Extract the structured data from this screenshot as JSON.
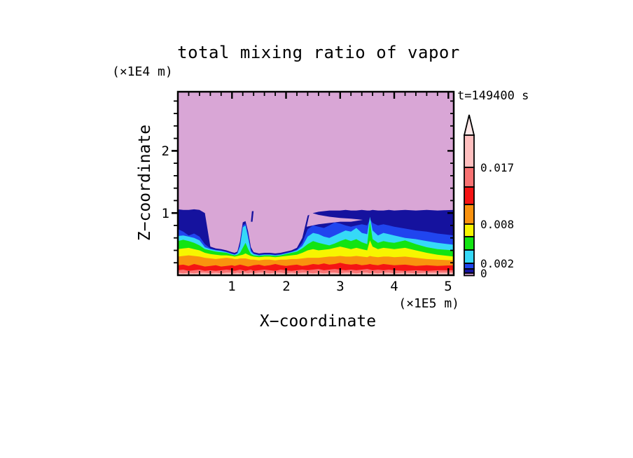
{
  "chart_data": {
    "type": "heatmap",
    "subtype": "filled-contour",
    "title": "total mixing ratio of vapor",
    "timestamp": "t=149400 s",
    "x_axis": {
      "label": "X−coordinate",
      "unit": "(×1E5 m)",
      "ticks": [
        "1",
        "2",
        "3",
        "4",
        "5"
      ],
      "tick_values": [
        1,
        2,
        3,
        4,
        5
      ],
      "minor_tick_step": 0.2,
      "range": [
        0,
        5.1
      ]
    },
    "z_axis": {
      "label": "Z−coordinate",
      "unit": "(×1E4 m)",
      "ticks": [
        "2",
        "1"
      ],
      "tick_values": [
        2,
        1
      ],
      "minor_tick_step": 0.2,
      "range": [
        0,
        2.95
      ]
    },
    "palette": {
      "lavender": "#D9A6D6",
      "navy": "#15129E",
      "blue": "#2045EF",
      "cyan": "#36D9F7",
      "green": "#12E412",
      "yellow": "#F7F500",
      "orange": "#F9920E",
      "red": "#F51414",
      "salmon": "#F87272",
      "lightpink": "#FFBFBF",
      "arrow": "#FFE9E9",
      "frame": "#000000"
    },
    "colorbar": {
      "labels": [
        "0.017",
        "0.008",
        "0.002",
        "0"
      ],
      "contour_levels_labeled": [
        0.017,
        0.008,
        0.002,
        0
      ],
      "segment_colors": [
        "lightpink",
        "salmon",
        "red",
        "orange",
        "yellow",
        "green",
        "cyan",
        "blue",
        "navy",
        "lavender"
      ],
      "segment_heights": [
        46,
        28,
        25,
        28,
        18,
        19,
        19,
        8,
        6,
        3.5
      ],
      "has_over_arrow": true
    },
    "background_band": "lavender",
    "x": [
      0,
      0.1,
      0.2,
      0.3,
      0.4,
      0.5,
      0.6,
      0.7,
      0.8,
      0.9,
      1.0,
      1.05,
      1.1,
      1.15,
      1.2,
      1.25,
      1.3,
      1.35,
      1.4,
      1.5,
      1.6,
      1.7,
      1.8,
      1.9,
      2.0,
      2.1,
      2.2,
      2.3,
      2.4,
      2.5,
      2.6,
      2.7,
      2.8,
      2.9,
      3.0,
      3.1,
      3.2,
      3.3,
      3.4,
      3.5,
      3.55,
      3.6,
      3.7,
      3.8,
      3.9,
      4.0,
      4.2,
      4.4,
      4.6,
      4.8,
      5.1
    ],
    "bands": [
      {
        "name": "navy",
        "color": "navy",
        "top": [
          1.06,
          1.05,
          1.05,
          1.06,
          1.05,
          1.0,
          0.46,
          0.43,
          0.42,
          0.4,
          0.37,
          0.36,
          0.38,
          0.55,
          0.85,
          0.87,
          0.7,
          0.45,
          0.37,
          0.35,
          0.36,
          0.36,
          0.35,
          0.36,
          0.38,
          0.4,
          0.44,
          0.6,
          0.96,
          1.0,
          1.02,
          1.03,
          1.04,
          1.04,
          1.04,
          1.05,
          1.04,
          1.04,
          1.05,
          1.04,
          1.04,
          1.05,
          1.04,
          1.04,
          1.05,
          1.04,
          1.05,
          1.04,
          1.05,
          1.04,
          1.05
        ]
      },
      {
        "name": "blue",
        "color": "blue",
        "top": [
          0.74,
          0.7,
          0.64,
          0.67,
          0.62,
          0.5,
          0.43,
          0.41,
          0.4,
          0.38,
          0.35,
          0.34,
          0.36,
          0.5,
          0.8,
          0.83,
          0.65,
          0.41,
          0.35,
          0.33,
          0.34,
          0.34,
          0.33,
          0.34,
          0.36,
          0.38,
          0.41,
          0.52,
          0.74,
          0.8,
          0.78,
          0.76,
          0.8,
          0.85,
          0.83,
          0.8,
          0.78,
          0.8,
          0.82,
          0.8,
          0.9,
          0.84,
          0.8,
          0.82,
          0.8,
          0.78,
          0.75,
          0.72,
          0.7,
          0.67,
          0.64
        ]
      },
      {
        "name": "cyan",
        "color": "cyan",
        "top": [
          0.63,
          0.64,
          0.62,
          0.6,
          0.56,
          0.45,
          0.42,
          0.4,
          0.39,
          0.37,
          0.34,
          0.33,
          0.35,
          0.46,
          0.77,
          0.8,
          0.6,
          0.38,
          0.34,
          0.32,
          0.33,
          0.33,
          0.32,
          0.33,
          0.35,
          0.37,
          0.4,
          0.47,
          0.62,
          0.68,
          0.66,
          0.62,
          0.6,
          0.64,
          0.68,
          0.72,
          0.7,
          0.76,
          0.68,
          0.66,
          0.94,
          0.72,
          0.64,
          0.68,
          0.66,
          0.64,
          0.6,
          0.58,
          0.55,
          0.52,
          0.49
        ]
      },
      {
        "name": "green",
        "color": "green",
        "top": [
          0.55,
          0.57,
          0.55,
          0.52,
          0.48,
          0.42,
          0.4,
          0.38,
          0.37,
          0.36,
          0.33,
          0.32,
          0.33,
          0.36,
          0.44,
          0.52,
          0.42,
          0.34,
          0.32,
          0.31,
          0.32,
          0.32,
          0.31,
          0.32,
          0.34,
          0.36,
          0.38,
          0.43,
          0.5,
          0.55,
          0.52,
          0.5,
          0.48,
          0.51,
          0.55,
          0.58,
          0.55,
          0.58,
          0.53,
          0.5,
          0.86,
          0.58,
          0.52,
          0.55,
          0.53,
          0.52,
          0.56,
          0.5,
          0.45,
          0.42,
          0.4
        ]
      },
      {
        "name": "yellow",
        "color": "yellow",
        "top": [
          0.42,
          0.43,
          0.44,
          0.42,
          0.4,
          0.36,
          0.34,
          0.33,
          0.32,
          0.32,
          0.31,
          0.3,
          0.31,
          0.32,
          0.33,
          0.35,
          0.33,
          0.31,
          0.3,
          0.29,
          0.3,
          0.3,
          0.29,
          0.3,
          0.31,
          0.32,
          0.33,
          0.36,
          0.4,
          0.42,
          0.4,
          0.41,
          0.42,
          0.44,
          0.46,
          0.44,
          0.42,
          0.44,
          0.42,
          0.4,
          0.56,
          0.46,
          0.42,
          0.44,
          0.43,
          0.42,
          0.44,
          0.4,
          0.36,
          0.33,
          0.3
        ]
      },
      {
        "name": "orange",
        "color": "orange",
        "top": [
          0.3,
          0.31,
          0.32,
          0.31,
          0.3,
          0.28,
          0.27,
          0.26,
          0.27,
          0.28,
          0.27,
          0.26,
          0.26,
          0.27,
          0.27,
          0.27,
          0.26,
          0.25,
          0.25,
          0.24,
          0.25,
          0.25,
          0.24,
          0.25,
          0.25,
          0.26,
          0.26,
          0.27,
          0.28,
          0.28,
          0.28,
          0.29,
          0.3,
          0.3,
          0.31,
          0.3,
          0.3,
          0.31,
          0.3,
          0.29,
          0.31,
          0.3,
          0.29,
          0.3,
          0.3,
          0.29,
          0.3,
          0.28,
          0.26,
          0.25,
          0.24
        ]
      },
      {
        "name": "red",
        "color": "red",
        "top": [
          0.16,
          0.17,
          0.15,
          0.18,
          0.16,
          0.14,
          0.15,
          0.16,
          0.14,
          0.15,
          0.16,
          0.15,
          0.16,
          0.17,
          0.16,
          0.15,
          0.14,
          0.15,
          0.16,
          0.17,
          0.15,
          0.16,
          0.18,
          0.16,
          0.15,
          0.16,
          0.17,
          0.15,
          0.16,
          0.18,
          0.17,
          0.19,
          0.17,
          0.18,
          0.2,
          0.18,
          0.17,
          0.18,
          0.16,
          0.17,
          0.18,
          0.17,
          0.16,
          0.18,
          0.17,
          0.16,
          0.17,
          0.15,
          0.16,
          0.15,
          0.16
        ]
      },
      {
        "name": "salmon",
        "color": "salmon",
        "top": [
          0.08,
          0.09,
          0.07,
          0.08,
          0.09,
          0.07,
          0.08,
          0.07,
          0.08,
          0.09,
          0.08,
          0.07,
          0.08,
          0.09,
          0.08,
          0.07,
          0.08,
          0.09,
          0.07,
          0.08,
          0.09,
          0.08,
          0.07,
          0.09,
          0.08,
          0.07,
          0.08,
          0.09,
          0.08,
          0.09,
          0.1,
          0.08,
          0.09,
          0.1,
          0.09,
          0.08,
          0.09,
          0.08,
          0.09,
          0.1,
          0.09,
          0.08,
          0.09,
          0.08,
          0.09,
          0.08,
          0.07,
          0.08,
          0.07,
          0.08,
          0.08
        ]
      },
      {
        "name": "lightpink",
        "color": "lightpink",
        "top": [
          0.04,
          0.03,
          0.04,
          0.03,
          0.04,
          0.04,
          0.03,
          0.04,
          0.03,
          0.04,
          0.04,
          0.03,
          0.04,
          0.03,
          0.04,
          0.04,
          0.03,
          0.04,
          0.03,
          0.04,
          0.04,
          0.03,
          0.04,
          0.04,
          0.03,
          0.04,
          0.03,
          0.04,
          0.04,
          0.03,
          0.04,
          0.03,
          0.04,
          0.04,
          0.03,
          0.04,
          0.04,
          0.03,
          0.04,
          0.04,
          0.03,
          0.04,
          0.03,
          0.04,
          0.04,
          0.03,
          0.04,
          0.03,
          0.04,
          0.04,
          0.04
        ]
      }
    ],
    "extra_shapes": [
      {
        "name": "lavender-wedge",
        "color": "lavender",
        "points": [
          [
            2.38,
            0.78
          ],
          [
            2.6,
            0.82
          ],
          [
            2.8,
            0.84
          ],
          [
            3.0,
            0.86
          ],
          [
            3.2,
            0.86
          ],
          [
            3.42,
            0.89
          ],
          [
            3.2,
            0.91
          ],
          [
            3.0,
            0.92
          ],
          [
            2.8,
            0.94
          ],
          [
            2.6,
            0.97
          ],
          [
            2.44,
            1.01
          ]
        ]
      },
      {
        "name": "navy-streak",
        "color": "navy",
        "points": [
          [
            1.35,
            0.86
          ],
          [
            1.37,
            1.03
          ],
          [
            1.4,
            1.03
          ],
          [
            1.38,
            0.86
          ]
        ]
      }
    ]
  }
}
